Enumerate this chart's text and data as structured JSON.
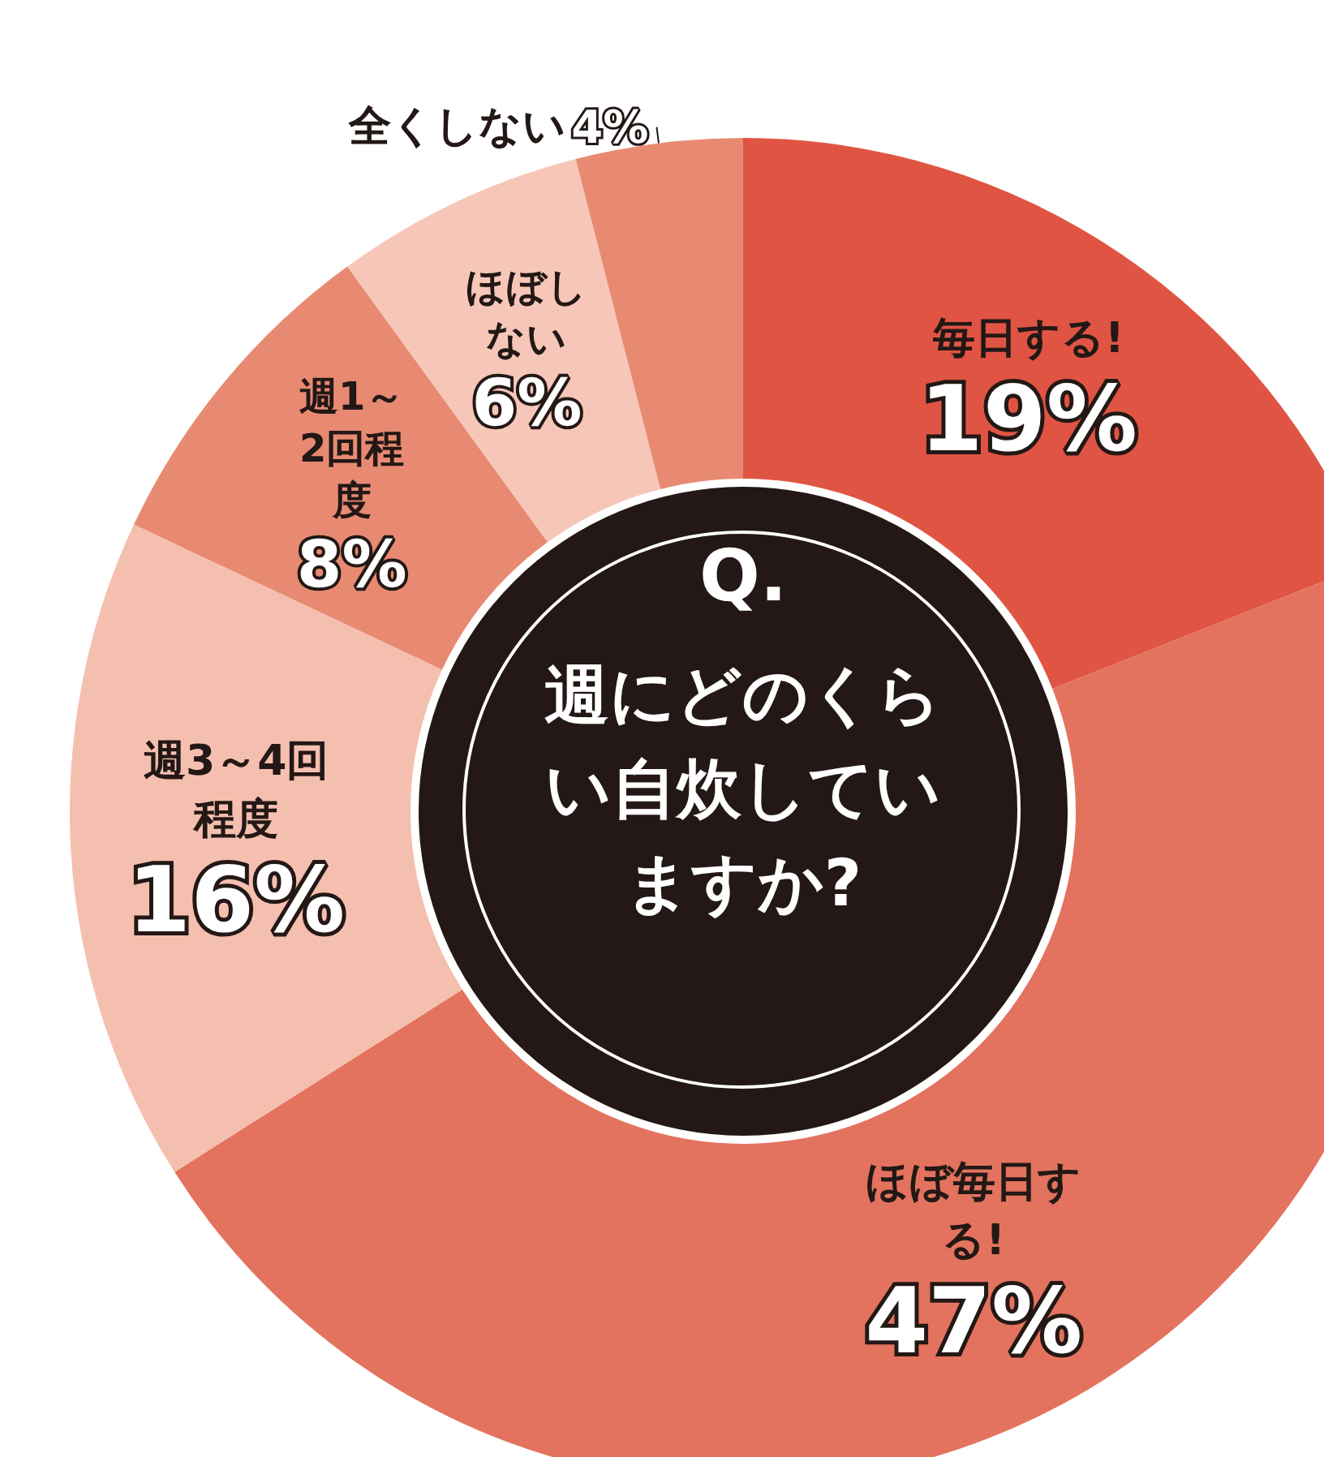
{
  "chart_data": {
    "type": "donut",
    "subtitle": "Q.",
    "title": "週にどのくらい自炊していますか?",
    "categories": [
      "毎日する!",
      "ほぼ毎日する!",
      "週3～4回程度",
      "週1～2回程度",
      "ほぼしない",
      "全くしない"
    ],
    "values": [
      19,
      47,
      16,
      8,
      6,
      4
    ],
    "colors": [
      "#e05443",
      "#e3735e",
      "#f5bfaf",
      "#e88a72",
      "#f6c7b8",
      "#e88a72"
    ],
    "value_labels": [
      "19%",
      "47%",
      "16%",
      "8%",
      "6%",
      "4%"
    ],
    "legend": false
  }
}
